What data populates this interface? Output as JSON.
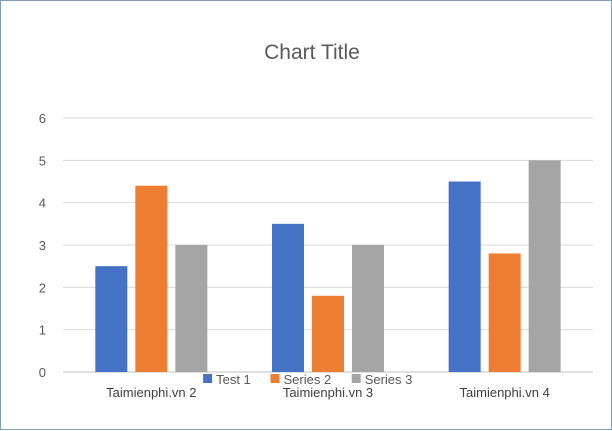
{
  "chart_data": {
    "type": "bar",
    "title": "Chart Title",
    "xlabel": "",
    "ylabel": "",
    "categories": [
      "Taimienphi.vn 2",
      "Taimienphi.vn 3",
      "Taimienphi.vn 4"
    ],
    "series": [
      {
        "name": "Test 1",
        "values": [
          2.5,
          3.5,
          4.5
        ],
        "color": "#4472c4"
      },
      {
        "name": "Series 2",
        "values": [
          4.4,
          1.8,
          2.8
        ],
        "color": "#ed7d31"
      },
      {
        "name": "Series 3",
        "values": [
          3,
          3,
          5
        ],
        "color": "#a5a5a5"
      }
    ],
    "yticks": [
      "0",
      "1",
      "2",
      "3",
      "4",
      "5",
      "6"
    ],
    "ylim": [
      0,
      6
    ],
    "grid": true,
    "legend_position": "bottom"
  }
}
